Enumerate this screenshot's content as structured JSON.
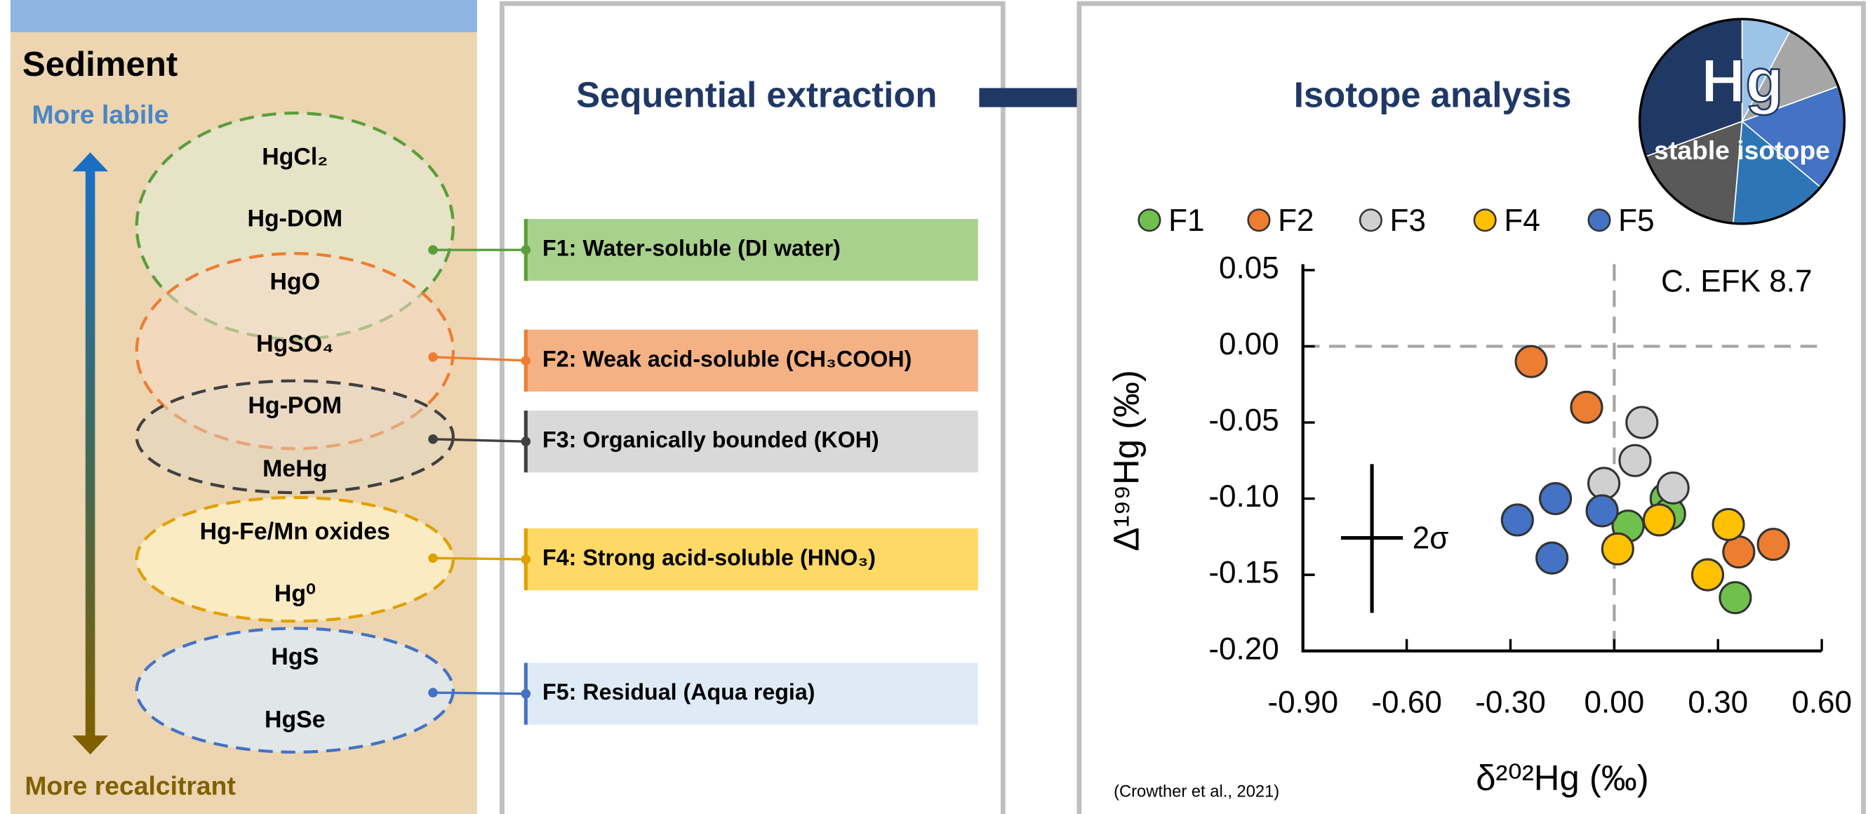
{
  "sediment": {
    "title": "Sediment",
    "top_label": "More labile",
    "bottom_label": "More recalcitrant",
    "pools": [
      {
        "species": [
          "HgCl₂",
          "Hg-DOM"
        ]
      },
      {
        "species": [
          "HgO",
          "HgSO₄"
        ]
      },
      {
        "species": [
          "Hg-POM",
          "MeHg"
        ]
      },
      {
        "species": [
          "Hg-Fe/Mn oxides",
          "Hg⁰"
        ]
      },
      {
        "species": [
          "HgS",
          "HgSe"
        ]
      }
    ]
  },
  "extraction": {
    "title": "Sequential extraction",
    "fractions": [
      "F1: Water-soluble (DI water)",
      "F2: Weak acid-soluble (CH₃COOH)",
      "F3: Organically bounded (KOH)",
      "F4: Strong acid-soluble (HNO₃)",
      "F5: Residual (Aqua regia)"
    ]
  },
  "analysis": {
    "title": "Isotope analysis",
    "badge": {
      "symbol": "Hg",
      "label": "stable isotope"
    },
    "source": "(Crowther et al., 2021)"
  },
  "chart_data": {
    "type": "scatter",
    "annotation": "C. EFK 8.7",
    "error_label": "2σ",
    "x_label": "δ²⁰²Hg (‰)",
    "y_label": "Δ¹⁹⁹Hg (‰)",
    "xlim": [
      -0.9,
      0.6
    ],
    "ylim": [
      -0.2,
      0.05
    ],
    "xticks": [
      {
        "value": -0.9,
        "label": "-0.90"
      },
      {
        "value": -0.6,
        "label": "-0.60"
      },
      {
        "value": -0.3,
        "label": "-0.30"
      },
      {
        "value": 0,
        "label": "0.00"
      },
      {
        "value": 0.3,
        "label": "0.30"
      },
      {
        "value": 0.6,
        "label": "0.60"
      }
    ],
    "yticks": [
      {
        "value": 0.05,
        "label": "0.05"
      },
      {
        "value": 0,
        "label": "0.00"
      },
      {
        "value": -0.05,
        "label": "-0.05"
      },
      {
        "value": -0.1,
        "label": "-0.10"
      },
      {
        "value": -0.15,
        "label": "-0.15"
      },
      {
        "value": -0.2,
        "label": "-0.20"
      }
    ],
    "zero_lines": true,
    "series": [
      {
        "name": "F1",
        "color": "#70c04e",
        "x": [
          0.04,
          0.15,
          0.16,
          0.35
        ],
        "values": [
          -0.118,
          -0.1,
          -0.11,
          -0.165
        ]
      },
      {
        "name": "F2",
        "color": "#ed7d31",
        "x": [
          -0.24,
          -0.08,
          0.36,
          0.46
        ],
        "values": [
          -0.01,
          -0.04,
          -0.135,
          -0.13
        ]
      },
      {
        "name": "F3",
        "color": "#d0d0d0",
        "x": [
          0.08,
          0.06,
          -0.03,
          0.17
        ],
        "values": [
          -0.05,
          -0.075,
          -0.09,
          -0.093
        ]
      },
      {
        "name": "F4",
        "color": "#ffc000",
        "x": [
          0.01,
          0.13,
          0.33,
          0.27
        ],
        "values": [
          -0.133,
          -0.114,
          -0.117,
          -0.15
        ]
      },
      {
        "name": "F5",
        "color": "#4472c4",
        "x": [
          -0.28,
          -0.17,
          -0.18,
          -0.035
        ],
        "values": [
          -0.114,
          -0.1,
          -0.139,
          -0.108
        ]
      }
    ]
  }
}
